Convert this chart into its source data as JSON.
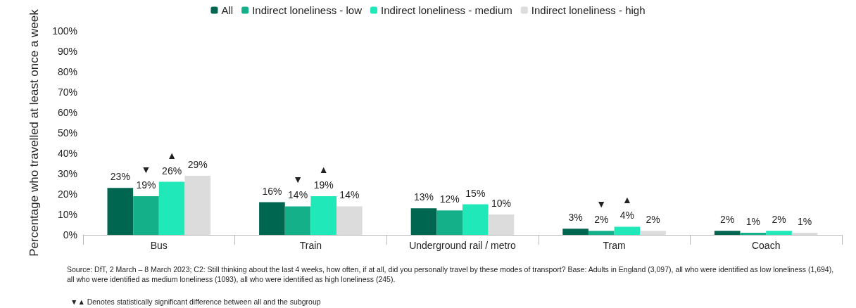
{
  "chart_data": {
    "type": "bar",
    "ylabel": "Percentage who travelled at least once a week",
    "categories": [
      "Bus",
      "Train",
      "Underground rail / metro",
      "Tram",
      "Coach"
    ],
    "series": [
      {
        "name": "All",
        "color": "#00664f",
        "values": [
          23,
          16,
          13,
          3,
          2
        ],
        "value_labels": [
          "23%",
          "16%",
          "13%",
          "3%",
          "2%"
        ]
      },
      {
        "name": "Indirect loneliness - low",
        "color": "#14b08a",
        "values": [
          19,
          14,
          12,
          2,
          1
        ],
        "value_labels": [
          "▼\n19%",
          "▼\n14%",
          "12%",
          "▼\n2%",
          "1%"
        ]
      },
      {
        "name": "Indirect loneliness - medium",
        "color": "#20e8b8",
        "values": [
          26,
          19,
          15,
          4,
          2
        ],
        "value_labels": [
          "▲\n26%",
          "▲\n19%",
          "15%",
          "▲\n4%",
          "2%"
        ]
      },
      {
        "name": "Indirect loneliness - high",
        "color": "#dcdcdc",
        "values": [
          29,
          14,
          10,
          2,
          1
        ],
        "value_labels": [
          "29%",
          "14%",
          "10%",
          "2%",
          "1%"
        ]
      }
    ],
    "ylim": [
      0,
      100
    ],
    "yticks": [
      {
        "value": 0,
        "label": "0%"
      },
      {
        "value": 10,
        "label": "10%"
      },
      {
        "value": 20,
        "label": "20%"
      },
      {
        "value": 30,
        "label": "30%"
      },
      {
        "value": 40,
        "label": "40%"
      },
      {
        "value": 50,
        "label": "50%"
      },
      {
        "value": 60,
        "label": "60%"
      },
      {
        "value": 70,
        "label": "70%"
      },
      {
        "value": 80,
        "label": "80%"
      },
      {
        "value": 90,
        "label": "90%"
      },
      {
        "value": 100,
        "label": "100%"
      }
    ],
    "grid": false,
    "legend": "top",
    "annotations": [
      "Source: DfT, 2 March – 8 March 2023; C2: Still thinking about the last 4 weeks, how often, if at all, did you personally travel by these modes of transport? Base: Adults in England (3,097), all who were identified as low loneliness (1,694), all who were identified as medium loneliness (1093), all who were identified as high loneliness (245).",
      "▼▲ Denotes statistically significant difference between all and the subgroup"
    ]
  }
}
